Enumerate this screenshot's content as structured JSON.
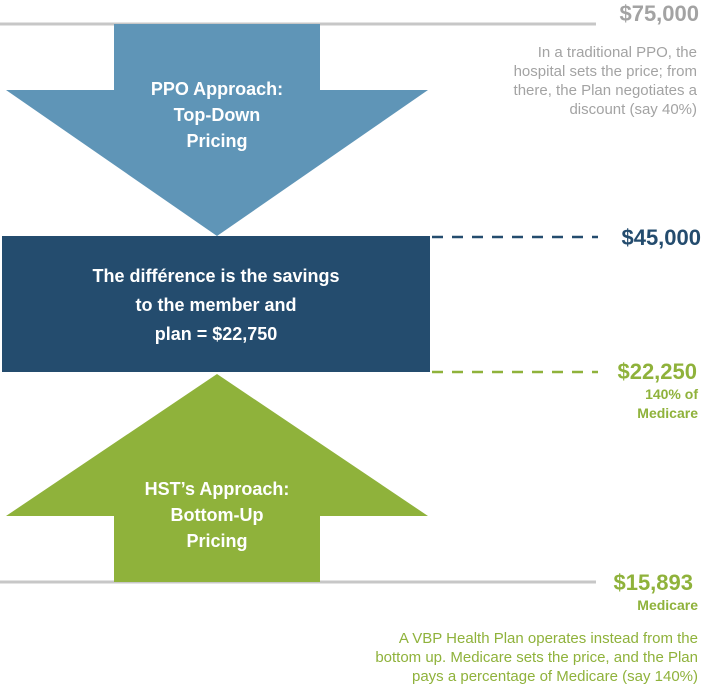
{
  "colors": {
    "ppo_arrow": "#5f95b7",
    "savings_box": "#244c6e",
    "hst_arrow": "#8fb23b",
    "gray_text": "#a3a3a3",
    "baseline": "#c7c7c7"
  },
  "prices": {
    "top": "$75,000",
    "ppo_discounted": "$45,000",
    "hst_price": "$22,250",
    "hst_price_note_line1": "140% of",
    "hst_price_note_line2": "Medicare",
    "medicare": "$15,893",
    "medicare_note": "Medicare"
  },
  "ppo_note": {
    "line1": "In a traditional PPO, the",
    "line2": "hospital sets the price; from",
    "line3": "there, the Plan negotiates a",
    "line4": "discount (say 40%)"
  },
  "ppo_arrow": {
    "line1": "PPO Approach:",
    "line2": "Top-Down",
    "line3": "Pricing"
  },
  "savings_box": {
    "line1": "The différence is the savings",
    "line2": "to the member and",
    "line3": "plan = $22,750"
  },
  "hst_arrow": {
    "line1": "HST’s Approach:",
    "line2": "Bottom-Up",
    "line3": "Pricing"
  },
  "vbp_note": {
    "line1": "A VBP Health Plan operates instead from the",
    "line2": "bottom up. Medicare sets the price, and the Plan",
    "line3": "pays a percentage of Medicare (say 140%)"
  }
}
